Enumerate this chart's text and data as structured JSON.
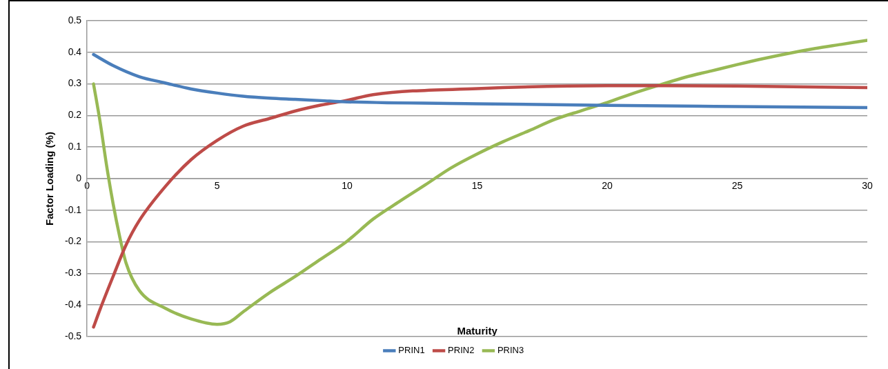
{
  "chart_data": {
    "type": "line",
    "xlabel": "Maturity",
    "ylabel": "Factor Loading (%)",
    "xlim": [
      0,
      30
    ],
    "xticks": [
      0,
      5,
      10,
      15,
      20,
      25,
      30
    ],
    "ylim": [
      -0.5,
      0.5
    ],
    "yticks": [
      -0.5,
      -0.4,
      -0.3,
      -0.2,
      -0.1,
      0,
      0.1,
      0.2,
      0.3,
      0.4,
      0.5
    ],
    "grid": "y",
    "legend": "bottom",
    "marker": "none",
    "line_style": "solid",
    "series": [
      {
        "name": "PRIN1",
        "color": "#4a7ebb",
        "x": [
          0.25,
          1,
          2,
          3,
          4,
          5,
          6,
          7,
          8,
          9,
          10,
          15,
          20,
          25,
          30
        ],
        "values": [
          0.393,
          0.358,
          0.323,
          0.303,
          0.284,
          0.271,
          0.261,
          0.255,
          0.251,
          0.247,
          0.243,
          0.237,
          0.232,
          0.228,
          0.225
        ]
      },
      {
        "name": "PRIN2",
        "color": "#be4b48",
        "x": [
          0.25,
          0.5,
          1,
          1.5,
          2,
          3,
          4,
          5,
          6,
          7,
          8,
          9,
          10,
          11,
          15,
          20,
          22,
          25,
          30
        ],
        "values": [
          -0.47,
          -0.414,
          -0.31,
          -0.21,
          -0.134,
          -0.026,
          0.06,
          0.121,
          0.166,
          0.19,
          0.214,
          0.233,
          0.248,
          0.266,
          0.285,
          0.294,
          0.294,
          0.293,
          0.288
        ]
      },
      {
        "name": "PRIN3",
        "color": "#98b954",
        "x": [
          0.25,
          0.5,
          0.75,
          1,
          1.25,
          1.5,
          2,
          3,
          4,
          5,
          5.5,
          6,
          7,
          8,
          9,
          10,
          11,
          12,
          13,
          14,
          15,
          16,
          17,
          18,
          19,
          20,
          21,
          22,
          23,
          24,
          25,
          26,
          27,
          28,
          29,
          30
        ],
        "values": [
          0.3,
          0.181,
          0.043,
          -0.078,
          -0.181,
          -0.267,
          -0.353,
          -0.41,
          -0.444,
          -0.461,
          -0.453,
          -0.422,
          -0.362,
          -0.31,
          -0.254,
          -0.198,
          -0.128,
          -0.073,
          -0.02,
          0.034,
          0.078,
          0.117,
          0.152,
          0.188,
          0.215,
          0.241,
          0.27,
          0.296,
          0.321,
          0.341,
          0.361,
          0.38,
          0.397,
          0.412,
          0.425,
          0.438
        ]
      }
    ]
  }
}
